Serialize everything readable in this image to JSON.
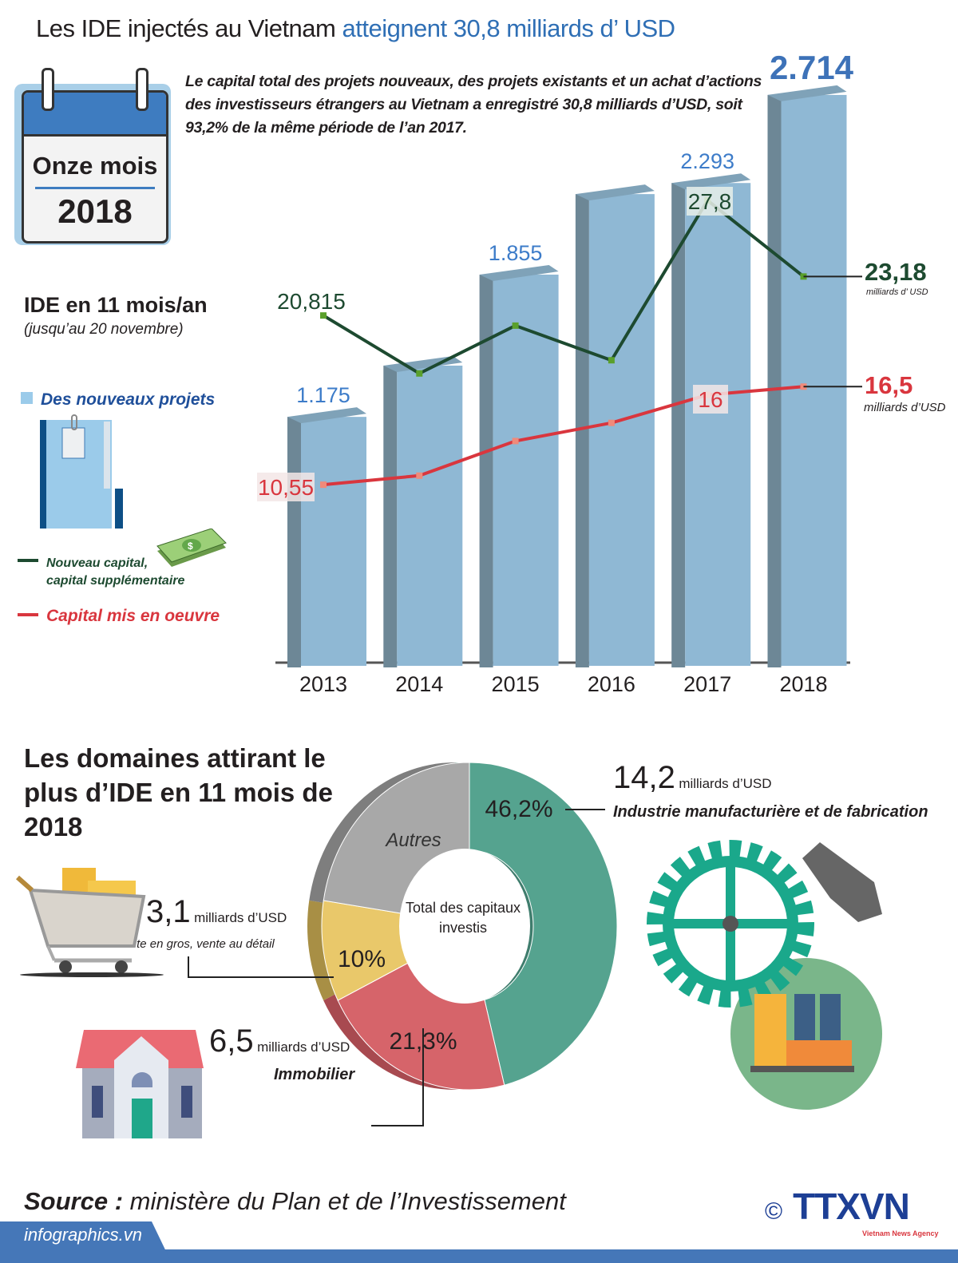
{
  "header": {
    "title_part1": "Les IDE  injectés au Vietnam ",
    "title_part2": "atteignent 30,8 milliards d’ USD",
    "intro": "Le capital total des projets nouveaux, des projets existants et un achat d’actions des investisseurs étrangers au Vietnam a enregistré 30,8 milliards d’USD, soit 93,2% de la même période de l’an 2017."
  },
  "calendar": {
    "line1": "Onze mois",
    "line2": "2018"
  },
  "section1": {
    "title": "IDE en 11 mois/an",
    "subtitle": "(jusqu’au 20 novembre)",
    "legend": {
      "bars": "Des nouveaux projets",
      "green_line_1": "Nouveau capital,",
      "green_line_2": "capital supplémentaire",
      "red_line": "Capital mis en oeuvre"
    },
    "unit_green": "milliards d’ USD",
    "unit_red": "milliards d’USD"
  },
  "section2": {
    "title": "Les domaines attirant le plus d’IDE  en 11 mois de 2018",
    "center_label": "Total des capitaux investis",
    "manufacturing": {
      "value": "14,2",
      "unit": "milliards d’USD",
      "label": "Industrie manufacturière et de fabrication"
    },
    "retail": {
      "value": "3,1",
      "unit": "milliards d’USD",
      "label": "Vente en gros, vente au détail"
    },
    "realestate": {
      "value": "6,5",
      "unit": "milliards d’USD",
      "label": "Immobilier"
    }
  },
  "footer": {
    "source_label": "Source :",
    "source_text": " ministère du Plan et de l’Investissement",
    "site": "infographics.vn",
    "copyright": "©",
    "logo": "TTXVN",
    "logo_sub": "Vietnam News Agency"
  },
  "colors": {
    "accent_blue": "#2f6fb5",
    "bar": "#8fb8d4",
    "green_line": "#1d4a30",
    "red_line": "#d9363e",
    "pie_green": "#55a38f",
    "pie_red": "#d6646a",
    "pie_yellow": "#e9c86a",
    "pie_gray": "#a8a8a8"
  },
  "chart_data": [
    {
      "type": "bar",
      "categories": [
        "2013",
        "2014",
        "2015",
        "2016",
        "2017",
        "2018"
      ],
      "series": [
        {
          "name": "Des nouveaux projets",
          "kind": "bar",
          "values": [
            1175,
            1420,
            1855,
            2240,
            2293,
            2714
          ],
          "labels": [
            "1.175",
            null,
            "1.855",
            null,
            "2.293",
            "2.714"
          ]
        },
        {
          "name": "Nouveau capital, capital supplémentaire",
          "kind": "line",
          "values": [
            20.815,
            17.3,
            20.2,
            18.1,
            27.8,
            23.18
          ],
          "labels": [
            "20,815",
            null,
            null,
            null,
            "27,8",
            "23,18"
          ]
        },
        {
          "name": "Capital mis en oeuvre",
          "kind": "line",
          "values": [
            10.55,
            11.1,
            13.2,
            14.3,
            16,
            16.5
          ],
          "labels": [
            "10,55",
            null,
            null,
            null,
            "16",
            "16,5"
          ]
        }
      ],
      "title": "IDE en 11 mois/an",
      "legend": "left"
    },
    {
      "type": "pie",
      "donut": true,
      "slices": [
        {
          "label": "Industrie manufacturière et de fabrication",
          "value": 46.2,
          "text": "46,2%"
        },
        {
          "label": "Immobilier",
          "value": 21.3,
          "text": "21,3%"
        },
        {
          "label": "Vente en gros, vente au détail",
          "value": 10,
          "text": "10%"
        },
        {
          "label": "Autres",
          "value": 22.5,
          "text": "Autres"
        }
      ],
      "title": "Les domaines attirant le plus d’IDE  en 11 mois de 2018"
    }
  ]
}
